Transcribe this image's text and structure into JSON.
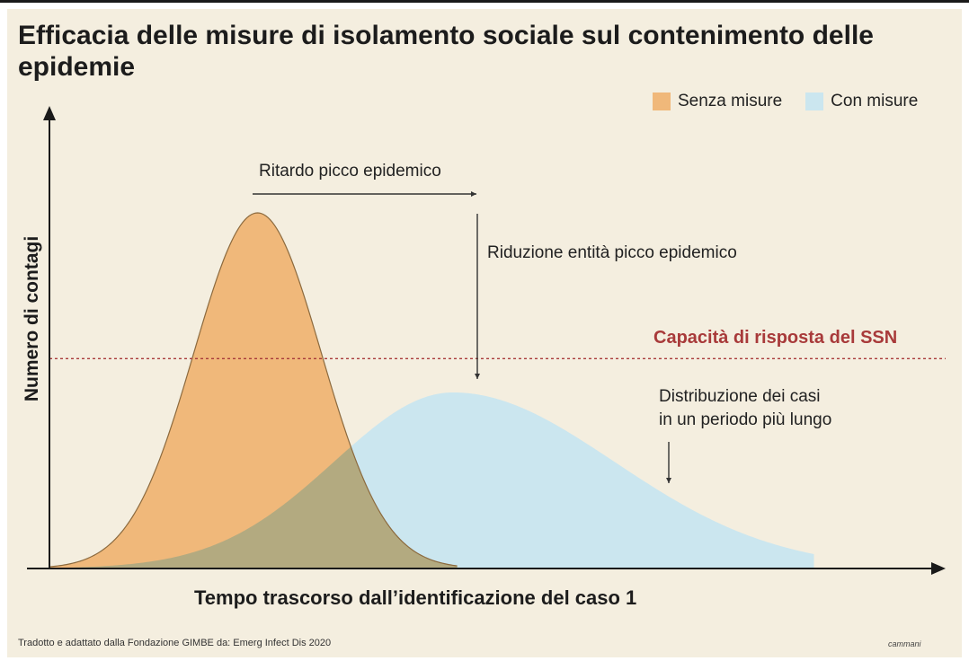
{
  "chart_data": {
    "type": "area",
    "title": "Efficacia delle misure di isolamento sociale sul contenimento delle epidemie",
    "xlabel": "Tempo trascorso dall’identificazione del caso 1",
    "ylabel": "Numero di contagi",
    "legend": {
      "placement": "top-right",
      "entries": [
        {
          "label": "Senza misure",
          "color": "#f0b87a"
        },
        {
          "label": "Con misure",
          "color": "#cbe6ef"
        }
      ]
    },
    "xlim": [
      0,
      100
    ],
    "ylim": [
      0,
      100
    ],
    "series": [
      {
        "name": "Senza misure",
        "peak_x": 24.5,
        "peak_y": 100,
        "width": 7.5,
        "end_x": 48,
        "color": "#f0b87a"
      },
      {
        "name": "Con misure",
        "peak_x": 47.5,
        "peak_y": 49.5,
        "width_left": 14,
        "width_right": 19,
        "end_x": 90,
        "color": "#cbe6ef"
      }
    ],
    "threshold": {
      "label": "Capacità di risposta del SSN",
      "y": 59,
      "color": "#a83a3a"
    },
    "annotations": {
      "delay": "Ritardo picco epidemico",
      "reduction": "Riduzione entità picco epidemico",
      "spread_line1": "Distribuzione dei casi",
      "spread_line2": "in un periodo più lungo"
    },
    "grid": false
  },
  "source": "Tradotto e adattato dalla Fondazione GIMBE da: Emerg Infect Dis 2020",
  "brand": "cammani"
}
